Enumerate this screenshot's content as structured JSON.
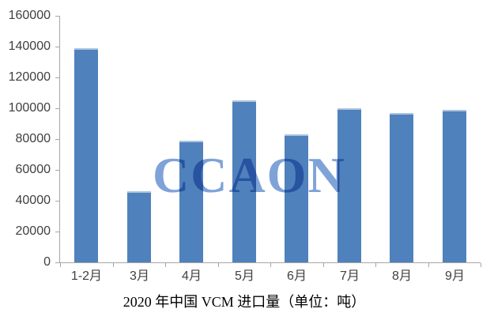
{
  "chart_data": {
    "type": "bar",
    "title": "2020 年中国 VCM 进口量（单位：吨）",
    "title_position": "bottom",
    "categories": [
      "1-2月",
      "3月",
      "4月",
      "5月",
      "6月",
      "7月",
      "8月",
      "9月"
    ],
    "values": [
      139000,
      46000,
      79000,
      105000,
      83000,
      100000,
      97000,
      99000
    ],
    "xlabel": "",
    "ylabel": "",
    "ylim": [
      0,
      160000
    ],
    "ytick_step": 20000,
    "ytick_labels": [
      "0",
      "20000",
      "40000",
      "60000",
      "80000",
      "100000",
      "120000",
      "140000",
      "160000"
    ],
    "grid": false,
    "legend_position": "none",
    "watermark_text": "CCAON",
    "colors": {
      "bar_fill": "#4f81bd",
      "bar_top_edge": "#aec3de",
      "axis_line": "#a6a6a6",
      "tick_label": "#404040",
      "title_text": "#000000",
      "watermark": "#7fa3d9",
      "background": "#ffffff"
    }
  }
}
